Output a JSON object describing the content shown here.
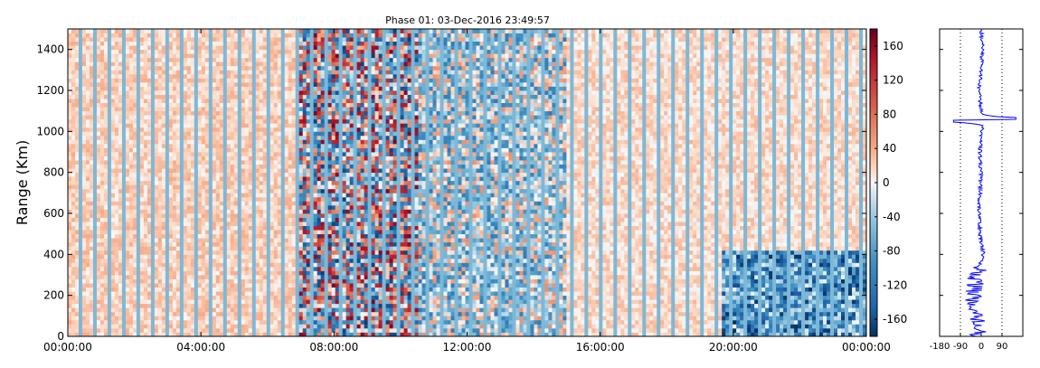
{
  "chart_data": [
    {
      "type": "heatmap",
      "title": "Phase 01: 03-Dec-2016 23:49:57",
      "ylabel": "Range (Km)",
      "xlabel": "",
      "x_ticks": [
        "00:00:00",
        "04:00:00",
        "08:00:00",
        "12:00:00",
        "16:00:00",
        "20:00:00",
        "00:00:00"
      ],
      "xlim_hours": [
        0,
        24
      ],
      "y_ticks": [
        0,
        200,
        400,
        600,
        800,
        1000,
        1200,
        1400
      ],
      "ylim": [
        0,
        1500
      ],
      "colormap": "RdBu_r",
      "vmin": -180,
      "vmax": 180,
      "colorbar_ticks": [
        -160,
        -120,
        -80,
        -40,
        0,
        40,
        80,
        120,
        160
      ],
      "regions": [
        {
          "hours": [
            0,
            7
          ],
          "range_km": [
            0,
            1500
          ],
          "phase_mean": 20,
          "spread": 20
        },
        {
          "hours": [
            7,
            10.5
          ],
          "range_km": [
            0,
            1500
          ],
          "phase_mean": 0,
          "spread": 170
        },
        {
          "hours": [
            10.5,
            15
          ],
          "range_km": [
            0,
            1500
          ],
          "phase_mean": -30,
          "spread": 90
        },
        {
          "hours": [
            15,
            24
          ],
          "range_km": [
            0,
            1500
          ],
          "phase_mean": 15,
          "spread": 20
        },
        {
          "hours": [
            19.7,
            24
          ],
          "range_km": [
            0,
            420
          ],
          "phase_mean": -90,
          "spread": 90
        }
      ]
    },
    {
      "type": "line",
      "x_ticks": [
        -180,
        -90,
        0,
        90
      ],
      "xlim": [
        -180,
        180
      ],
      "ylim": [
        0,
        1500
      ],
      "reference_lines_x": [
        -90,
        90
      ],
      "series": [
        {
          "color": "#0000ff",
          "range_km": [
            0,
            60,
            120,
            180,
            240,
            300,
            340,
            400,
            450,
            500,
            600,
            700,
            800,
            900,
            1000,
            1030,
            1050,
            1060,
            1080,
            1100,
            1200,
            1300,
            1400,
            1500
          ],
          "phase": [
            -20,
            -10,
            -25,
            -40,
            -30,
            -20,
            -10,
            10,
            0,
            -5,
            -10,
            -5,
            0,
            -5,
            0,
            10,
            -120,
            150,
            10,
            0,
            -10,
            0,
            5,
            0
          ]
        }
      ]
    }
  ]
}
